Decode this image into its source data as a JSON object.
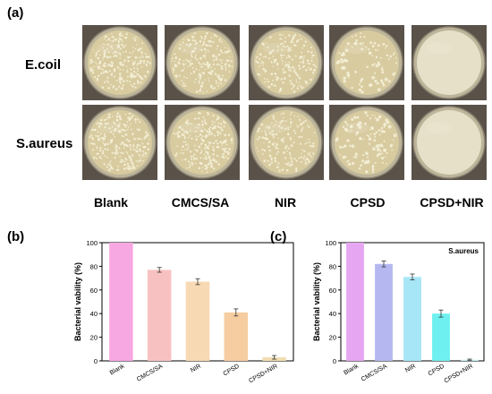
{
  "figure": {
    "panel_a": "(a)",
    "panel_b": "(b)",
    "panel_c": "(c)",
    "rows": [
      "E.coil",
      "S.aureus"
    ],
    "columns": [
      "Blank",
      "CMCS/SA",
      "NIR",
      "CPSD",
      "CPSD+NIR"
    ]
  },
  "plates": {
    "colony_density": [
      [
        1.0,
        0.85,
        0.75,
        0.35,
        0.0
      ],
      [
        1.0,
        0.9,
        0.7,
        0.45,
        0.0
      ]
    ],
    "agar_color": "#d8cba0",
    "colony_color": "#f4efd6",
    "clear_agar_color": "#e6e0c8"
  },
  "chart_data": [
    {
      "type": "bar",
      "panel": "(b)",
      "title": "",
      "ylabel": "Bacterial vability (%)",
      "xlabel": "",
      "ylim": [
        0,
        100
      ],
      "yticks": [
        0,
        20,
        40,
        60,
        80,
        100
      ],
      "categories": [
        "Blank",
        "CMCS/SA",
        "NIR",
        "CPSD",
        "CPSD+NIR"
      ],
      "values": [
        100,
        77,
        67,
        41,
        3
      ],
      "errors": [
        0,
        2,
        2.5,
        3,
        1.5
      ],
      "colors": [
        "#f7a8e3",
        "#f8c1c1",
        "#f7d9b3",
        "#f6cda0",
        "#f2ddb0"
      ]
    },
    {
      "type": "bar",
      "panel": "(c)",
      "title": "S.aureus",
      "ylabel": "Bacterial vability (%)",
      "xlabel": "",
      "ylim": [
        0,
        100
      ],
      "yticks": [
        0,
        20,
        40,
        60,
        80,
        100
      ],
      "categories": [
        "Blank",
        "CMCS/SA",
        "NIR",
        "CPSD",
        "CPSD+NIR"
      ],
      "values": [
        100,
        82,
        71,
        40,
        1
      ],
      "errors": [
        0,
        2.5,
        2.5,
        3,
        0.5
      ],
      "colors": [
        "#e6a6f2",
        "#b5b8f0",
        "#a6e6f6",
        "#6ff0f0",
        "#c7f3f7"
      ]
    }
  ]
}
